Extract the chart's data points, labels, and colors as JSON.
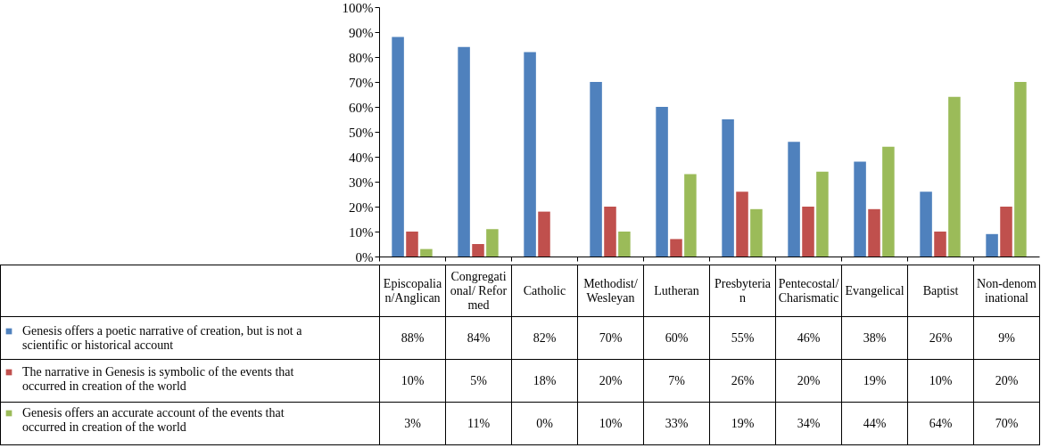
{
  "chart_data": {
    "type": "bar",
    "categories": [
      "Episcopalian/Anglican",
      "Congregational/ Reformed",
      "Catholic",
      "Methodist/Wesleyan",
      "Lutheran",
      "Presbyterian",
      "Pentecostal/Charismatic",
      "Evangelical",
      "Baptist",
      "Non-denominational"
    ],
    "series": [
      {
        "name": "Genesis offers a poetic narrative of creation, but is not a scientific or historical account",
        "color": "#4f81bd",
        "values": [
          88,
          84,
          82,
          70,
          60,
          55,
          46,
          38,
          26,
          9
        ],
        "value_labels": [
          "88%",
          "84%",
          "82%",
          "70%",
          "60%",
          "55%",
          "46%",
          "38%",
          "26%",
          "9%"
        ]
      },
      {
        "name": "The narrative in Genesis is symbolic of the events that occurred in creation of the world",
        "color": "#c0504d",
        "values": [
          10,
          5,
          18,
          20,
          7,
          26,
          20,
          19,
          10,
          20
        ],
        "value_labels": [
          "10%",
          "5%",
          "18%",
          "20%",
          "7%",
          "26%",
          "20%",
          "19%",
          "10%",
          "20%"
        ]
      },
      {
        "name": "Genesis offers an accurate account of the events that occurred in creation of the world",
        "color": "#9bbb59",
        "values": [
          3,
          11,
          0,
          10,
          33,
          19,
          34,
          44,
          64,
          70
        ],
        "value_labels": [
          "3%",
          "11%",
          "0%",
          "10%",
          "33%",
          "19%",
          "34%",
          "44%",
          "64%",
          "70%"
        ]
      }
    ],
    "ylim": [
      0,
      100
    ],
    "yticks": [
      {
        "value": 0,
        "label": "0%"
      },
      {
        "value": 10,
        "label": "10%"
      },
      {
        "value": 20,
        "label": "20%"
      },
      {
        "value": 30,
        "label": "30%"
      },
      {
        "value": 40,
        "label": "40%"
      },
      {
        "value": 50,
        "label": "50%"
      },
      {
        "value": 60,
        "label": "60%"
      },
      {
        "value": 70,
        "label": "70%"
      },
      {
        "value": 80,
        "label": "80%"
      },
      {
        "value": 90,
        "label": "90%"
      },
      {
        "value": 100,
        "label": "100%"
      }
    ],
    "grid": false,
    "legend": "bottom left"
  }
}
